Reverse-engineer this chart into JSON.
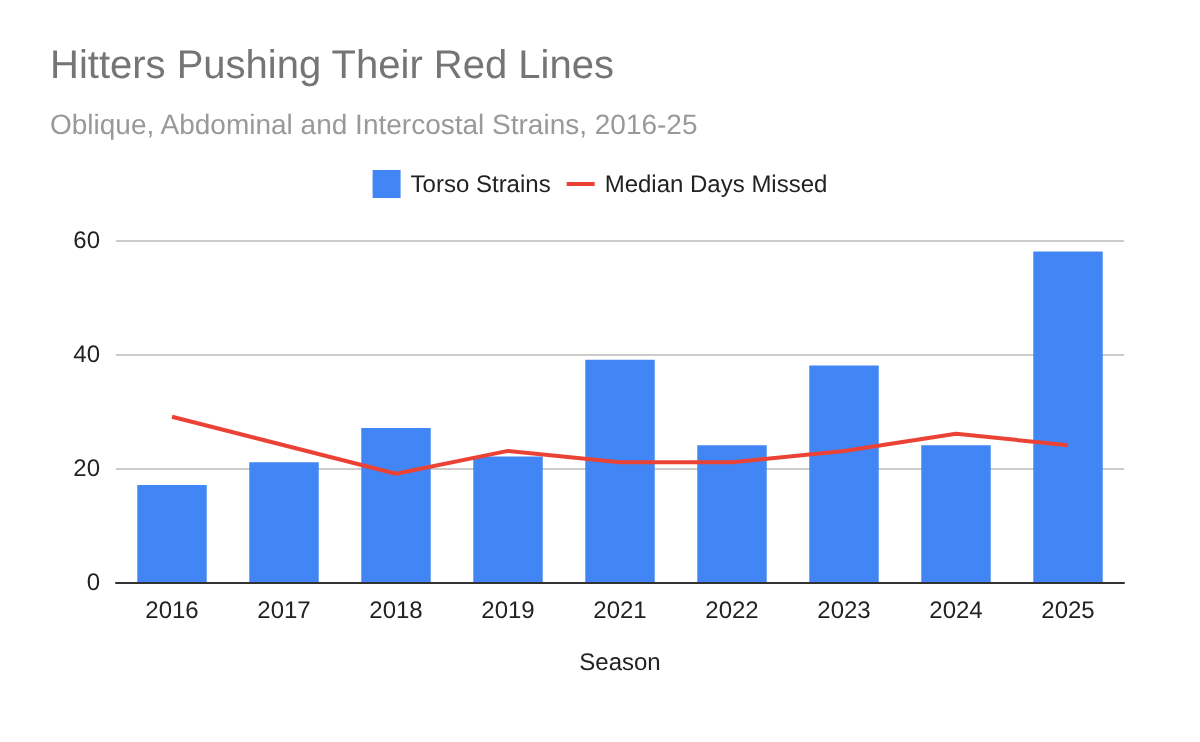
{
  "chart_data": {
    "type": "bar",
    "title": "Hitters Pushing Their Red Lines",
    "subtitle": "Oblique, Abdominal and Intercostal Strains, 2016-25",
    "xlabel": "Season",
    "categories": [
      "2016",
      "2017",
      "2018",
      "2019",
      "2021",
      "2022",
      "2023",
      "2024",
      "2025"
    ],
    "series": [
      {
        "name": "Torso Strains",
        "color": "#4285f4",
        "values": [
          17,
          21,
          27,
          22,
          39,
          24,
          38,
          24,
          58
        ]
      },
      {
        "name": "Median Days Missed",
        "type": "line",
        "color": "#ea4335",
        "values": [
          29,
          24,
          19,
          23,
          21,
          21,
          23,
          26,
          24
        ]
      }
    ],
    "ylim": [
      0,
      60
    ],
    "yticks": [
      0,
      20,
      40,
      60
    ],
    "grid": "y",
    "legend": "top",
    "marker": "none"
  }
}
